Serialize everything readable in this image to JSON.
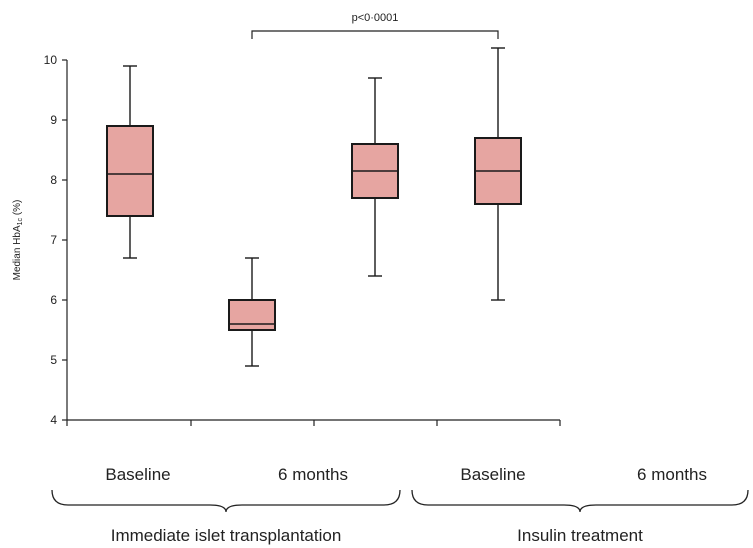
{
  "chart_data": {
    "type": "box",
    "ylabel": "Median HbA",
    "ylabel_sub": "1c",
    "ylabel_unit": " (%)",
    "ylim": [
      4,
      10
    ],
    "yticks": [
      "4",
      "5",
      "6",
      "7",
      "8",
      "9",
      "10"
    ],
    "categories": [
      "Baseline",
      "6 months",
      "Baseline",
      "6 months"
    ],
    "groups": [
      {
        "label": "Immediate islet transplantation",
        "categories": [
          0,
          1
        ]
      },
      {
        "label": "Insulin treatment",
        "categories": [
          2,
          3
        ]
      }
    ],
    "boxes": [
      {
        "category": "Baseline",
        "group": "Immediate islet transplantation",
        "min": 6.7,
        "q1": 7.4,
        "median": 8.1,
        "q3": 8.9,
        "max": 9.9
      },
      {
        "category": "6 months",
        "group": "Immediate islet transplantation",
        "min": 4.9,
        "q1": 5.5,
        "median": 5.6,
        "q3": 6.0,
        "max": 6.7
      },
      {
        "category": "Baseline",
        "group": "Insulin treatment",
        "min": 6.4,
        "q1": 7.7,
        "median": 8.15,
        "q3": 8.6,
        "max": 9.7
      },
      {
        "category": "6 months",
        "group": "Insulin treatment",
        "min": 6.0,
        "q1": 7.6,
        "median": 8.15,
        "q3": 8.7,
        "max": 10.2
      }
    ],
    "annotation": {
      "text": "p<0·0001",
      "from_box": 1,
      "to_box": 3
    },
    "colors": {
      "box_fill": "#e6a5a1",
      "stroke": "#1a1a1a"
    },
    "grid": false
  }
}
